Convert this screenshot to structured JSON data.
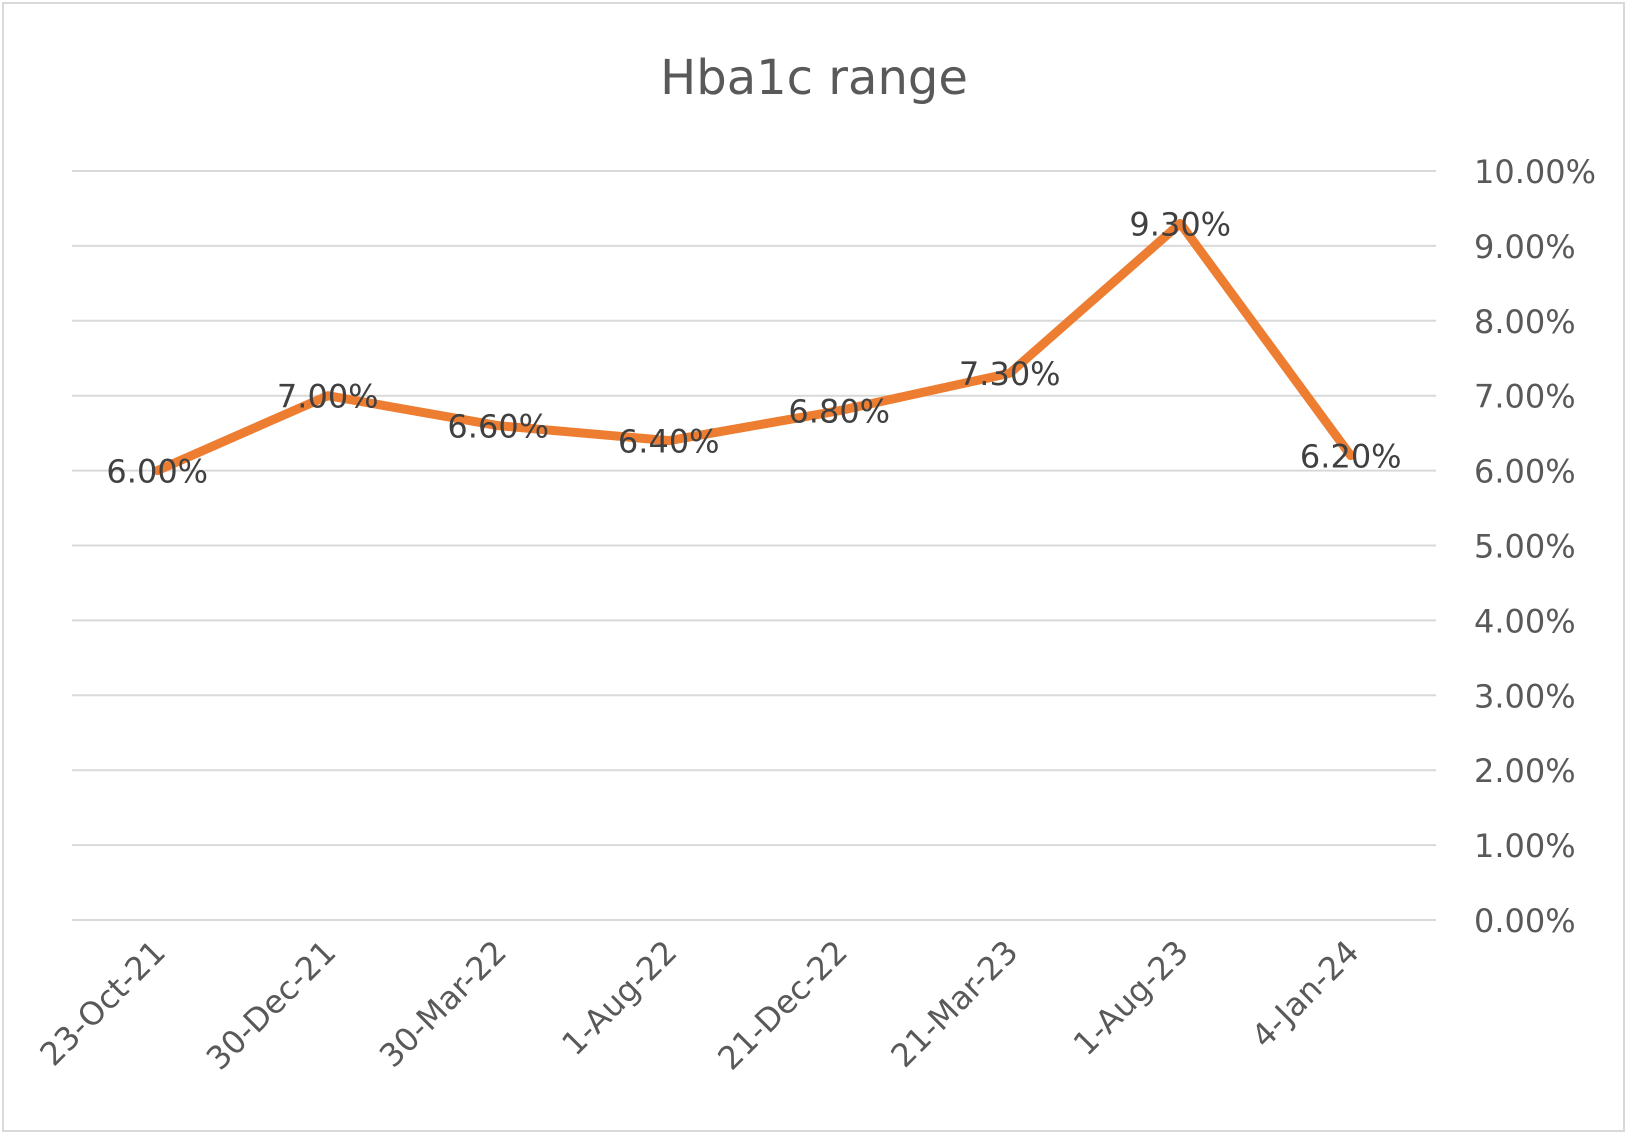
{
  "chart_data": {
    "type": "line",
    "title": "Hba1c range",
    "categories": [
      "23-Oct-21",
      "30-Dec-21",
      "30-Mar-22",
      "1-Aug-22",
      "21-Dec-22",
      "21-Mar-23",
      "1-Aug-23",
      "4-Jan-24"
    ],
    "series": [
      {
        "values": [
          6.0,
          7.0,
          6.6,
          6.4,
          6.8,
          7.3,
          9.3,
          6.2
        ],
        "data_labels": [
          "6.00%",
          "7.00%",
          "6.60%",
          "6.40%",
          "6.80%",
          "7.30%",
          "9.30%",
          "6.20%"
        ],
        "color": "#ED7D31"
      }
    ],
    "y_tick_labels": [
      "0.00%",
      "1.00%",
      "2.00%",
      "3.00%",
      "4.00%",
      "5.00%",
      "6.00%",
      "7.00%",
      "8.00%",
      "9.00%",
      "10.00%"
    ],
    "ylim": [
      0,
      10
    ],
    "y_axis_position": "right",
    "grid": true,
    "legend": "none",
    "colors": {
      "line": "#ED7D31",
      "grid": "#d9d9d9",
      "text": "#595959"
    }
  }
}
